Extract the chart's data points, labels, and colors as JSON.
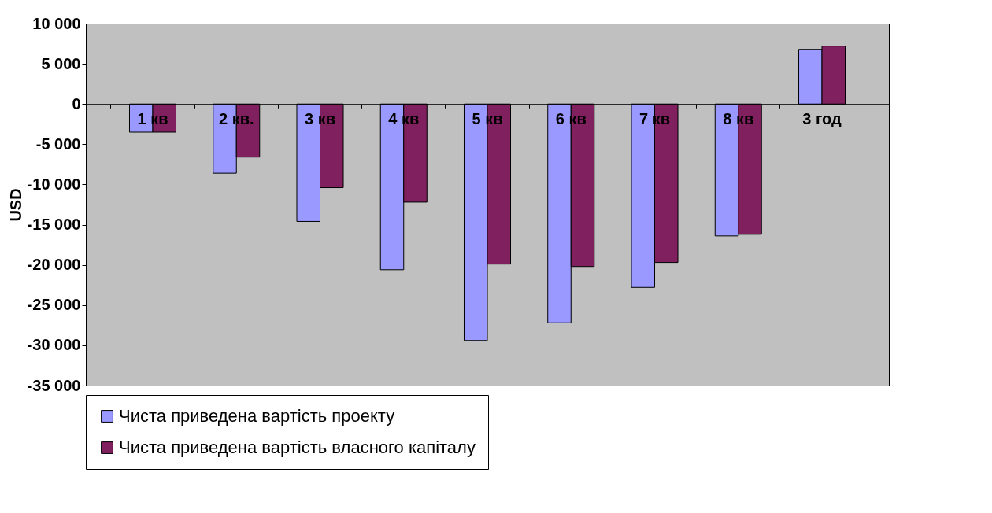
{
  "chart_data": {
    "type": "bar",
    "ylabel": "USD",
    "categories": [
      "1 кв",
      "2 кв.",
      "3 кв",
      "4 кв",
      "5 кв",
      "6 кв",
      "7 кв",
      "8 кв",
      "3 год"
    ],
    "series": [
      {
        "name": "Чиста приведена вартість проекту",
        "color": "#9999ff",
        "values": [
          -3500,
          -8600,
          -14600,
          -20600,
          -29400,
          -27200,
          -22800,
          -16400,
          6800
        ]
      },
      {
        "name": "Чиста приведена вартість власного капіталу",
        "color": "#80205f",
        "values": [
          -3500,
          -6600,
          -10400,
          -12200,
          -19900,
          -20200,
          -19700,
          -16200,
          7200
        ]
      }
    ],
    "ylim": [
      -35000,
      10000
    ],
    "yticks": [
      {
        "value": -35000,
        "label": "-35 000"
      },
      {
        "value": -30000,
        "label": "-30 000"
      },
      {
        "value": -25000,
        "label": "-25 000"
      },
      {
        "value": -20000,
        "label": "-20 000"
      },
      {
        "value": -15000,
        "label": "-15 000"
      },
      {
        "value": -10000,
        "label": "-10 000"
      },
      {
        "value": -5000,
        "label": "-5 000"
      },
      0,
      {
        "value": 5000,
        "label": "5 000"
      },
      {
        "value": 10000,
        "label": "10 000"
      }
    ],
    "grid": false,
    "legend": "bottom"
  }
}
